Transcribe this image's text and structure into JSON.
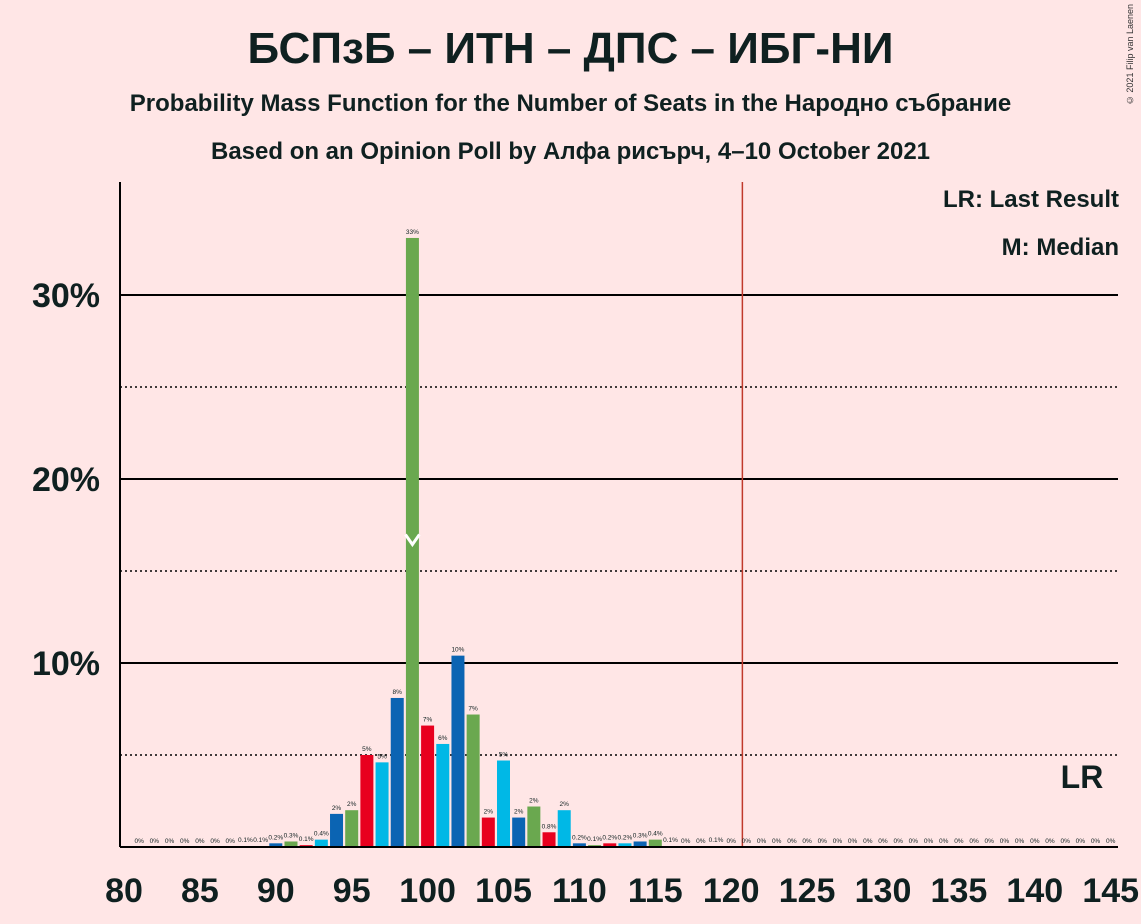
{
  "title": "БСПзБ – ИТН – ДПС – ИБГ-НИ",
  "subtitle": "Probability Mass Function for the Number of Seats in the Народно събрание",
  "subtitle2": "Based on an Opinion Poll by Алфа рисърч, 4–10 October 2021",
  "credit": "© 2021 Filip van Laenen",
  "legend": {
    "last_result": "LR: Last Result",
    "median": "M: Median"
  },
  "lr_marker": "LR",
  "median_marker": "M",
  "colors": {
    "background": "#FFE6E6",
    "green": "#6AA84F",
    "blue": "#0B64B3",
    "red": "#E8001E",
    "cyan": "#00B8E6",
    "majority_line": "#C0392B",
    "text": "#0F2020"
  },
  "chart_data": {
    "type": "bar",
    "x_axis": {
      "min": 80,
      "max": 145,
      "ticks": [
        80,
        85,
        90,
        95,
        100,
        105,
        110,
        115,
        120,
        125,
        130,
        135,
        140,
        145
      ]
    },
    "y_axis": {
      "min": 0,
      "max": 36,
      "ticks": [
        10,
        20,
        30
      ],
      "tick_labels": [
        "10%",
        "20%",
        "30%"
      ],
      "dotted": [
        5,
        15,
        25
      ]
    },
    "majority_line": 121,
    "last_result": 144,
    "median": 99,
    "bars": [
      {
        "seats": 80,
        "value": 0,
        "label": "",
        "color": "green"
      },
      {
        "seats": 81,
        "value": 0,
        "label": "0%",
        "color": "blue"
      },
      {
        "seats": 82,
        "value": 0,
        "label": "0%",
        "color": "red"
      },
      {
        "seats": 83,
        "value": 0,
        "label": "0%",
        "color": "cyan"
      },
      {
        "seats": 84,
        "value": 0,
        "label": "0%",
        "color": "blue"
      },
      {
        "seats": 85,
        "value": 0,
        "label": "0%",
        "color": "green"
      },
      {
        "seats": 86,
        "value": 0,
        "label": "0%",
        "color": "red"
      },
      {
        "seats": 87,
        "value": 0,
        "label": "0%",
        "color": "cyan"
      },
      {
        "seats": 88,
        "value": 0.05,
        "label": "0.1%",
        "color": "blue"
      },
      {
        "seats": 89,
        "value": 0.05,
        "label": "0.1%",
        "color": "green"
      },
      {
        "seats": 90,
        "value": 0.2,
        "label": "0.2%",
        "color": "blue"
      },
      {
        "seats": 91,
        "value": 0.3,
        "label": "0.3%",
        "color": "green"
      },
      {
        "seats": 92,
        "value": 0.1,
        "label": "0.1%",
        "color": "red"
      },
      {
        "seats": 93,
        "value": 0.4,
        "label": "0.4%",
        "color": "cyan"
      },
      {
        "seats": 94,
        "value": 1.8,
        "label": "2%",
        "color": "blue"
      },
      {
        "seats": 95,
        "value": 2.0,
        "label": "2%",
        "color": "green"
      },
      {
        "seats": 96,
        "value": 5.0,
        "label": "5%",
        "color": "red"
      },
      {
        "seats": 97,
        "value": 4.6,
        "label": "5%",
        "color": "cyan"
      },
      {
        "seats": 98,
        "value": 8.1,
        "label": "8%",
        "color": "blue"
      },
      {
        "seats": 99,
        "value": 33.1,
        "label": "33%",
        "color": "green"
      },
      {
        "seats": 100,
        "value": 6.6,
        "label": "7%",
        "color": "red"
      },
      {
        "seats": 101,
        "value": 5.6,
        "label": "6%",
        "color": "cyan"
      },
      {
        "seats": 102,
        "value": 10.4,
        "label": "10%",
        "color": "blue"
      },
      {
        "seats": 103,
        "value": 7.2,
        "label": "7%",
        "color": "green"
      },
      {
        "seats": 104,
        "value": 1.6,
        "label": "2%",
        "color": "red"
      },
      {
        "seats": 105,
        "value": 4.7,
        "label": "5%",
        "color": "cyan"
      },
      {
        "seats": 106,
        "value": 1.6,
        "label": "2%",
        "color": "blue"
      },
      {
        "seats": 107,
        "value": 2.2,
        "label": "2%",
        "color": "green"
      },
      {
        "seats": 108,
        "value": 0.8,
        "label": "0.8%",
        "color": "red"
      },
      {
        "seats": 109,
        "value": 2.0,
        "label": "2%",
        "color": "cyan"
      },
      {
        "seats": 110,
        "value": 0.2,
        "label": "0.2%",
        "color": "blue"
      },
      {
        "seats": 111,
        "value": 0.1,
        "label": "0.1%",
        "color": "green"
      },
      {
        "seats": 112,
        "value": 0.2,
        "label": "0.2%",
        "color": "red"
      },
      {
        "seats": 113,
        "value": 0.2,
        "label": "0.2%",
        "color": "cyan"
      },
      {
        "seats": 114,
        "value": 0.3,
        "label": "0.3%",
        "color": "blue"
      },
      {
        "seats": 115,
        "value": 0.4,
        "label": "0.4%",
        "color": "green"
      },
      {
        "seats": 116,
        "value": 0.05,
        "label": "0.1%",
        "color": "red"
      },
      {
        "seats": 117,
        "value": 0,
        "label": "0%",
        "color": "cyan"
      },
      {
        "seats": 118,
        "value": 0,
        "label": "0%",
        "color": "blue"
      },
      {
        "seats": 119,
        "value": 0.05,
        "label": "0.1%",
        "color": "green"
      },
      {
        "seats": 120,
        "value": 0,
        "label": "0%",
        "color": "red"
      },
      {
        "seats": 121,
        "value": 0,
        "label": "0%",
        "color": "cyan"
      },
      {
        "seats": 122,
        "value": 0,
        "label": "0%",
        "color": "blue"
      },
      {
        "seats": 123,
        "value": 0,
        "label": "0%",
        "color": "green"
      },
      {
        "seats": 124,
        "value": 0,
        "label": "0%",
        "color": "red"
      },
      {
        "seats": 125,
        "value": 0,
        "label": "0%",
        "color": "cyan"
      },
      {
        "seats": 126,
        "value": 0,
        "label": "0%",
        "color": "blue"
      },
      {
        "seats": 127,
        "value": 0,
        "label": "0%",
        "color": "green"
      },
      {
        "seats": 128,
        "value": 0,
        "label": "0%",
        "color": "red"
      },
      {
        "seats": 129,
        "value": 0,
        "label": "0%",
        "color": "cyan"
      },
      {
        "seats": 130,
        "value": 0,
        "label": "0%",
        "color": "blue"
      },
      {
        "seats": 131,
        "value": 0,
        "label": "0%",
        "color": "green"
      },
      {
        "seats": 132,
        "value": 0,
        "label": "0%",
        "color": "red"
      },
      {
        "seats": 133,
        "value": 0,
        "label": "0%",
        "color": "cyan"
      },
      {
        "seats": 134,
        "value": 0,
        "label": "0%",
        "color": "blue"
      },
      {
        "seats": 135,
        "value": 0,
        "label": "0%",
        "color": "green"
      },
      {
        "seats": 136,
        "value": 0,
        "label": "0%",
        "color": "red"
      },
      {
        "seats": 137,
        "value": 0,
        "label": "0%",
        "color": "cyan"
      },
      {
        "seats": 138,
        "value": 0,
        "label": "0%",
        "color": "blue"
      },
      {
        "seats": 139,
        "value": 0,
        "label": "0%",
        "color": "green"
      },
      {
        "seats": 140,
        "value": 0,
        "label": "0%",
        "color": "red"
      },
      {
        "seats": 141,
        "value": 0,
        "label": "0%",
        "color": "cyan"
      },
      {
        "seats": 142,
        "value": 0,
        "label": "0%",
        "color": "blue"
      },
      {
        "seats": 143,
        "value": 0,
        "label": "0%",
        "color": "green"
      },
      {
        "seats": 144,
        "value": 0,
        "label": "0%",
        "color": "red"
      },
      {
        "seats": 145,
        "value": 0,
        "label": "0%",
        "color": "cyan"
      }
    ]
  }
}
